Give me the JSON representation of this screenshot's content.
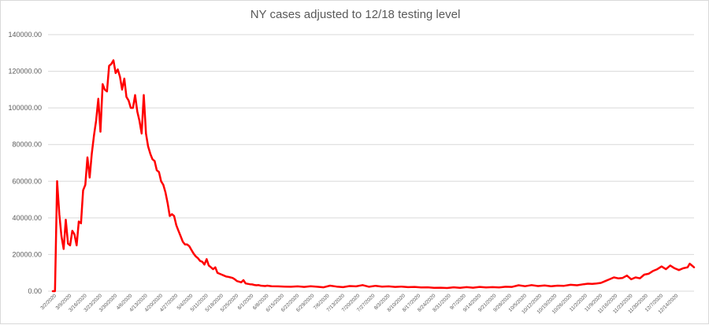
{
  "chart_data": {
    "type": "line",
    "title": "NY cases adjusted to 12/18 testing level",
    "xlabel": "",
    "ylabel": "",
    "ylim": [
      0,
      140000
    ],
    "yticks": [
      "0.00",
      "20000.00",
      "40000.00",
      "60000.00",
      "80000.00",
      "100000.00",
      "120000.00",
      "140000.00"
    ],
    "grid": true,
    "legend": "none",
    "colors": {
      "line": "#ff0000",
      "grid": "#d9d9d9",
      "text": "#595959"
    },
    "x_tick_labels": [
      "3/2/2020",
      "3/9/2020",
      "3/16/2020",
      "3/23/2020",
      "3/30/2020",
      "4/6/2020",
      "4/13/2020",
      "4/20/2020",
      "4/27/2020",
      "5/4/2020",
      "5/11/2020",
      "5/18/2020",
      "5/25/2020",
      "6/1/2020",
      "6/8/2020",
      "6/15/2020",
      "6/22/2020",
      "6/29/2020",
      "7/6/2020",
      "7/13/2020",
      "7/20/2020",
      "7/27/2020",
      "8/3/2020",
      "8/10/2020",
      "8/17/2020",
      "8/24/2020",
      "8/31/2020",
      "9/7/2020",
      "9/14/2020",
      "9/21/2020",
      "9/28/2020",
      "10/5/2020",
      "10/12/2020",
      "10/19/2020",
      "10/26/2020",
      "11/2/2020",
      "11/9/2020",
      "11/16/2020",
      "11/23/2020",
      "11/30/2020",
      "12/7/2020",
      "12/14/2020"
    ],
    "series": [
      {
        "points": [
          [
            "2020-03-01",
            0
          ],
          [
            "2020-03-02",
            0
          ],
          [
            "2020-03-03",
            60000
          ],
          [
            "2020-03-04",
            42000
          ],
          [
            "2020-03-05",
            30000
          ],
          [
            "2020-03-06",
            23000
          ],
          [
            "2020-03-07",
            39000
          ],
          [
            "2020-03-08",
            26000
          ],
          [
            "2020-03-09",
            25000
          ],
          [
            "2020-03-10",
            33000
          ],
          [
            "2020-03-11",
            31000
          ],
          [
            "2020-03-12",
            25000
          ],
          [
            "2020-03-13",
            38000
          ],
          [
            "2020-03-14",
            37000
          ],
          [
            "2020-03-15",
            55000
          ],
          [
            "2020-03-16",
            58000
          ],
          [
            "2020-03-17",
            73000
          ],
          [
            "2020-03-18",
            62000
          ],
          [
            "2020-03-19",
            75000
          ],
          [
            "2020-03-20",
            85000
          ],
          [
            "2020-03-21",
            93000
          ],
          [
            "2020-03-22",
            105000
          ],
          [
            "2020-03-23",
            87000
          ],
          [
            "2020-03-24",
            113000
          ],
          [
            "2020-03-25",
            110000
          ],
          [
            "2020-03-26",
            109000
          ],
          [
            "2020-03-27",
            123000
          ],
          [
            "2020-03-28",
            124000
          ],
          [
            "2020-03-29",
            126000
          ],
          [
            "2020-03-30",
            119000
          ],
          [
            "2020-03-31",
            121000
          ],
          [
            "2020-04-01",
            117000
          ],
          [
            "2020-04-02",
            110000
          ],
          [
            "2020-04-03",
            116000
          ],
          [
            "2020-04-04",
            106000
          ],
          [
            "2020-04-05",
            104000
          ],
          [
            "2020-04-06",
            100000
          ],
          [
            "2020-04-07",
            100000
          ],
          [
            "2020-04-08",
            107000
          ],
          [
            "2020-04-09",
            98000
          ],
          [
            "2020-04-10",
            93000
          ],
          [
            "2020-04-11",
            86000
          ],
          [
            "2020-04-12",
            107000
          ],
          [
            "2020-04-13",
            86000
          ],
          [
            "2020-04-14",
            79000
          ],
          [
            "2020-04-15",
            75000
          ],
          [
            "2020-04-16",
            72000
          ],
          [
            "2020-04-17",
            71000
          ],
          [
            "2020-04-18",
            66000
          ],
          [
            "2020-04-19",
            65000
          ],
          [
            "2020-04-20",
            60000
          ],
          [
            "2020-04-21",
            58000
          ],
          [
            "2020-04-22",
            54000
          ],
          [
            "2020-04-23",
            48000
          ],
          [
            "2020-04-24",
            41000
          ],
          [
            "2020-04-25",
            42000
          ],
          [
            "2020-04-26",
            41000
          ],
          [
            "2020-04-27",
            36000
          ],
          [
            "2020-04-28",
            33000
          ],
          [
            "2020-04-29",
            30000
          ],
          [
            "2020-04-30",
            27000
          ],
          [
            "2020-05-01",
            25500
          ],
          [
            "2020-05-02",
            25500
          ],
          [
            "2020-05-03",
            24500
          ],
          [
            "2020-05-04",
            22500
          ],
          [
            "2020-05-05",
            20500
          ],
          [
            "2020-05-06",
            19000
          ],
          [
            "2020-05-07",
            18000
          ],
          [
            "2020-05-08",
            16500
          ],
          [
            "2020-05-09",
            16000
          ],
          [
            "2020-05-10",
            14500
          ],
          [
            "2020-05-11",
            17500
          ],
          [
            "2020-05-12",
            14000
          ],
          [
            "2020-05-13",
            13000
          ],
          [
            "2020-05-14",
            12000
          ],
          [
            "2020-05-15",
            13000
          ],
          [
            "2020-05-16",
            10000
          ],
          [
            "2020-05-17",
            9500
          ],
          [
            "2020-05-18",
            9000
          ],
          [
            "2020-05-19",
            8500
          ],
          [
            "2020-05-20",
            8000
          ],
          [
            "2020-05-21",
            7800
          ],
          [
            "2020-05-22",
            7500
          ],
          [
            "2020-05-23",
            7200
          ],
          [
            "2020-05-24",
            6500
          ],
          [
            "2020-05-25",
            5500
          ],
          [
            "2020-05-26",
            5200
          ],
          [
            "2020-05-27",
            4800
          ],
          [
            "2020-05-28",
            6000
          ],
          [
            "2020-05-29",
            4200
          ],
          [
            "2020-05-30",
            4000
          ],
          [
            "2020-05-31",
            3800
          ],
          [
            "2020-06-01",
            3700
          ],
          [
            "2020-06-02",
            3400
          ],
          [
            "2020-06-03",
            3200
          ],
          [
            "2020-06-04",
            3300
          ],
          [
            "2020-06-05",
            3000
          ],
          [
            "2020-06-06",
            2900
          ],
          [
            "2020-06-07",
            2800
          ],
          [
            "2020-06-08",
            3000
          ],
          [
            "2020-06-10",
            2700
          ],
          [
            "2020-06-13",
            2600
          ],
          [
            "2020-06-16",
            2500
          ],
          [
            "2020-06-19",
            2400
          ],
          [
            "2020-06-22",
            2600
          ],
          [
            "2020-06-25",
            2300
          ],
          [
            "2020-06-28",
            2700
          ],
          [
            "2020-07-01",
            2400
          ],
          [
            "2020-07-04",
            2100
          ],
          [
            "2020-07-07",
            3000
          ],
          [
            "2020-07-10",
            2500
          ],
          [
            "2020-07-13",
            2200
          ],
          [
            "2020-07-16",
            2800
          ],
          [
            "2020-07-19",
            2600
          ],
          [
            "2020-07-22",
            3300
          ],
          [
            "2020-07-25",
            2400
          ],
          [
            "2020-07-28",
            2900
          ],
          [
            "2020-07-31",
            2500
          ],
          [
            "2020-08-03",
            2600
          ],
          [
            "2020-08-06",
            2300
          ],
          [
            "2020-08-09",
            2500
          ],
          [
            "2020-08-12",
            2200
          ],
          [
            "2020-08-15",
            2300
          ],
          [
            "2020-08-18",
            2000
          ],
          [
            "2020-08-21",
            2100
          ],
          [
            "2020-08-24",
            1800
          ],
          [
            "2020-08-27",
            1900
          ],
          [
            "2020-08-30",
            1700
          ],
          [
            "2020-09-02",
            2100
          ],
          [
            "2020-09-05",
            1800
          ],
          [
            "2020-09-08",
            2200
          ],
          [
            "2020-09-11",
            1900
          ],
          [
            "2020-09-14",
            2300
          ],
          [
            "2020-09-17",
            2000
          ],
          [
            "2020-09-20",
            2200
          ],
          [
            "2020-09-23",
            2000
          ],
          [
            "2020-09-26",
            2400
          ],
          [
            "2020-09-29",
            2300
          ],
          [
            "2020-10-02",
            3200
          ],
          [
            "2020-10-05",
            2700
          ],
          [
            "2020-10-08",
            3300
          ],
          [
            "2020-10-11",
            2800
          ],
          [
            "2020-10-14",
            3100
          ],
          [
            "2020-10-17",
            2700
          ],
          [
            "2020-10-20",
            3000
          ],
          [
            "2020-10-23",
            2900
          ],
          [
            "2020-10-26",
            3500
          ],
          [
            "2020-10-29",
            3200
          ],
          [
            "2020-11-01",
            3800
          ],
          [
            "2020-11-03",
            4100
          ],
          [
            "2020-11-05",
            4000
          ],
          [
            "2020-11-07",
            4200
          ],
          [
            "2020-11-09",
            4500
          ],
          [
            "2020-11-11",
            5500
          ],
          [
            "2020-11-13",
            6500
          ],
          [
            "2020-11-15",
            7500
          ],
          [
            "2020-11-17",
            7000
          ],
          [
            "2020-11-19",
            7200
          ],
          [
            "2020-11-21",
            8500
          ],
          [
            "2020-11-23",
            6500
          ],
          [
            "2020-11-25",
            7500
          ],
          [
            "2020-11-27",
            7000
          ],
          [
            "2020-11-29",
            9000
          ],
          [
            "2020-12-01",
            9500
          ],
          [
            "2020-12-03",
            11000
          ],
          [
            "2020-12-05",
            12000
          ],
          [
            "2020-12-07",
            13500
          ],
          [
            "2020-12-09",
            12000
          ],
          [
            "2020-12-11",
            14000
          ],
          [
            "2020-12-13",
            12500
          ],
          [
            "2020-12-15",
            11500
          ],
          [
            "2020-12-17",
            12500
          ],
          [
            "2020-12-19",
            13000
          ],
          [
            "2020-12-20",
            15000
          ],
          [
            "2020-12-21",
            14000
          ],
          [
            "2020-12-22",
            13000
          ]
        ]
      }
    ]
  }
}
